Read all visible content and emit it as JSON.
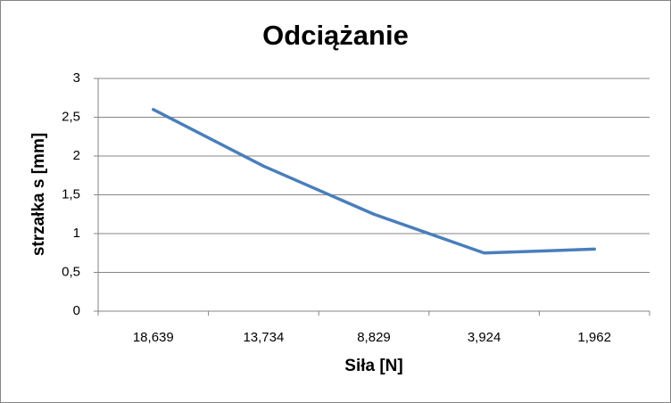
{
  "chart_data": {
    "type": "line",
    "title": "Odciążanie",
    "x_label": "Siła [N]",
    "y_label": "strzałka s [mm]",
    "categories": [
      "18,639",
      "13,734",
      "8,829",
      "3,924",
      "1,962"
    ],
    "series": [
      {
        "name": "strzałka s",
        "color": "#4a7ebb",
        "values": [
          2.6,
          1.87,
          1.25,
          0.75,
          0.8
        ]
      }
    ],
    "ylim": [
      0,
      3
    ],
    "yticks": [
      0,
      {
        "value": 0.5,
        "label": "0,5"
      },
      1,
      {
        "value": 1.5,
        "label": "1,5"
      },
      2,
      {
        "value": 2.5,
        "label": "2,5"
      },
      3
    ],
    "grid": true
  }
}
